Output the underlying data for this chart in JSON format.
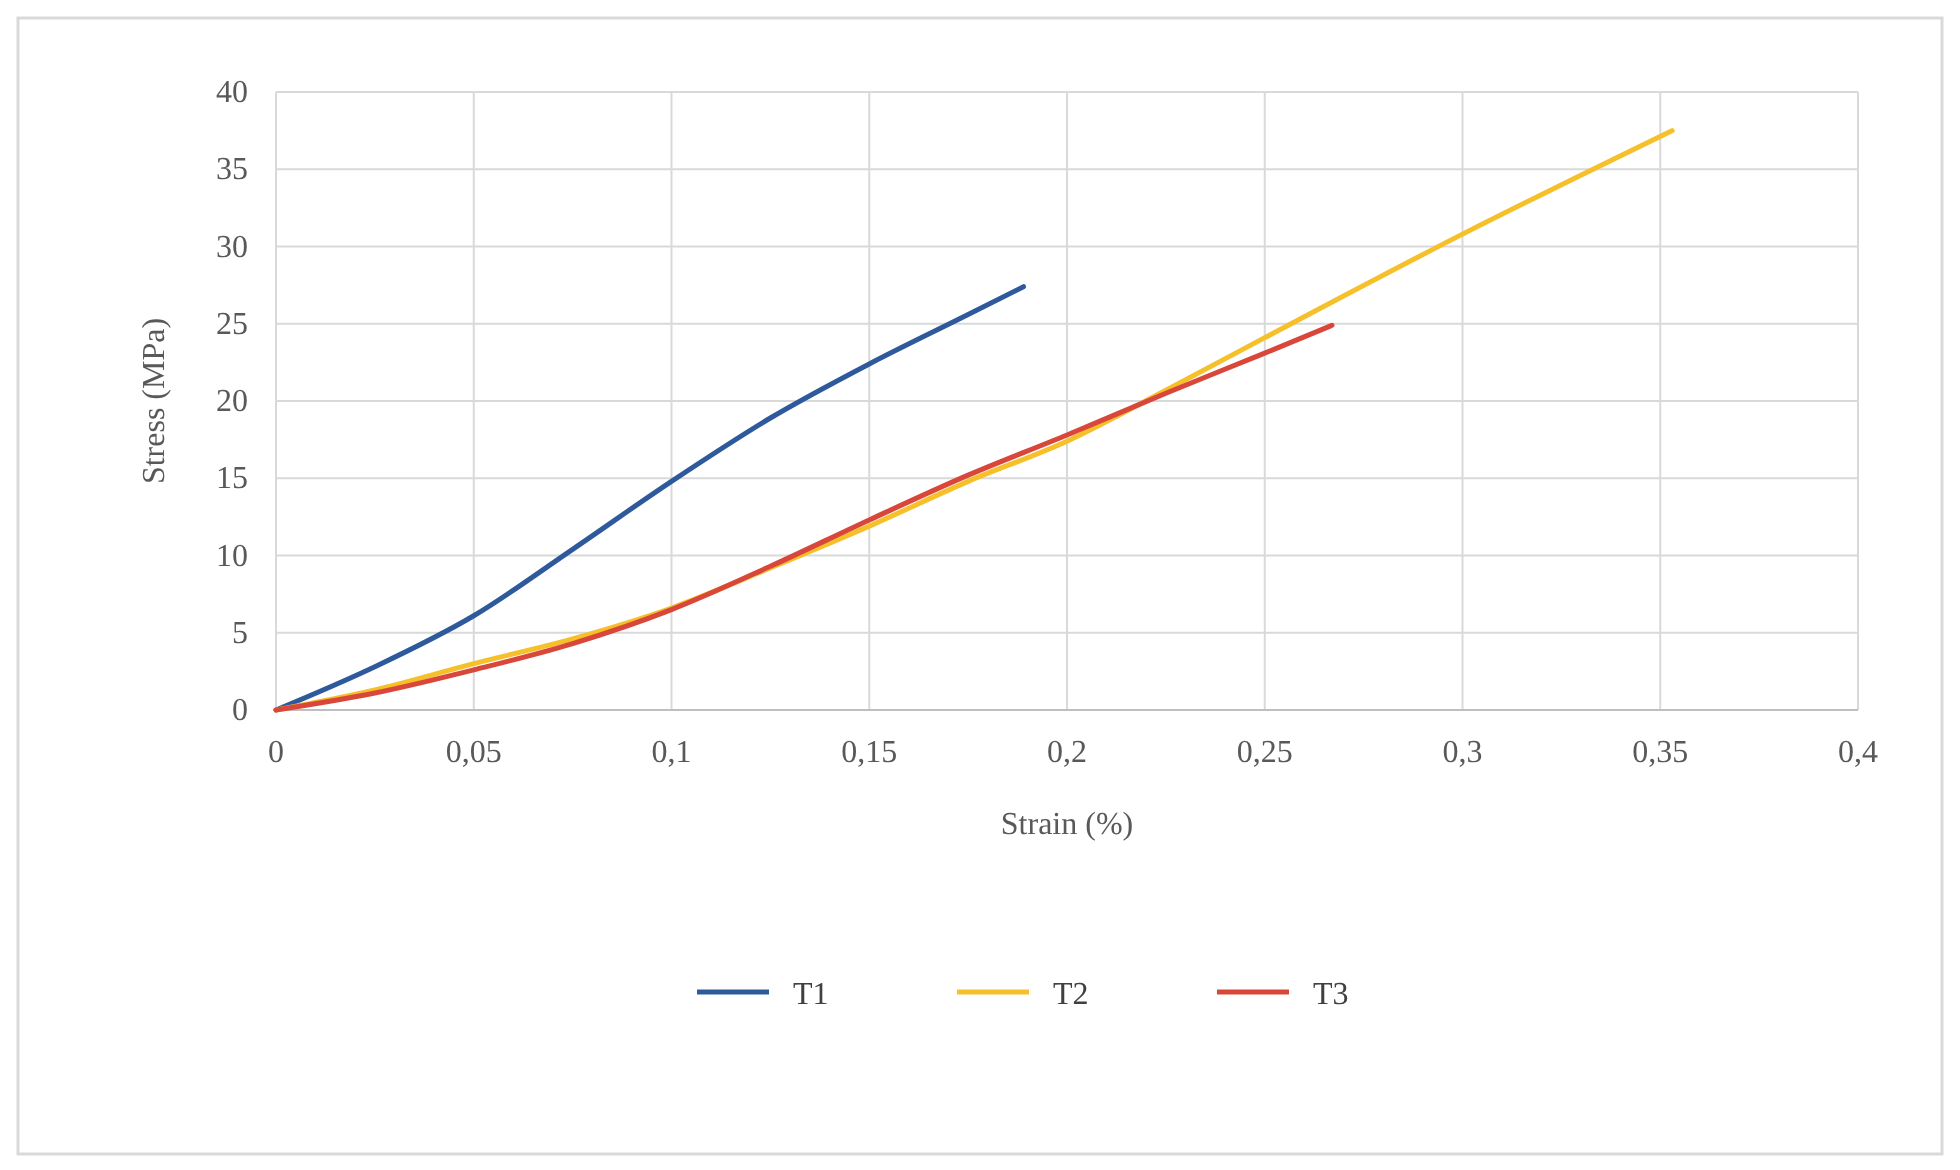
{
  "chart_data": {
    "type": "line",
    "xlabel": "Strain (%)",
    "ylabel": "Stress (MPa)",
    "xlim": [
      0,
      0.4
    ],
    "ylim": [
      0,
      40
    ],
    "xticks": [
      0,
      {
        "value": 0.05,
        "label": "0,05"
      },
      {
        "value": 0.1,
        "label": "0,1"
      },
      {
        "value": 0.15,
        "label": "0,15"
      },
      {
        "value": 0.2,
        "label": "0,2"
      },
      {
        "value": 0.25,
        "label": "0,25"
      },
      {
        "value": 0.3,
        "label": "0,3"
      },
      {
        "value": 0.35,
        "label": "0,35"
      },
      {
        "value": 0.4,
        "label": "0,4"
      }
    ],
    "yticks": [
      0,
      5,
      10,
      15,
      20,
      25,
      30,
      35,
      40
    ],
    "grid": true,
    "legend": "bottom",
    "marker": "none",
    "line_style": "solid",
    "series": [
      {
        "name": "T1",
        "color": "#2e5a9c",
        "x": [
          0,
          0.025,
          0.05,
          0.075,
          0.1,
          0.125,
          0.15,
          0.175,
          0.189
        ],
        "values": [
          0,
          2.8,
          6.1,
          10.4,
          14.8,
          18.9,
          22.4,
          25.6,
          27.4
        ]
      },
      {
        "name": "T2",
        "color": "#f5c02a",
        "x": [
          0,
          0.025,
          0.05,
          0.075,
          0.1,
          0.125,
          0.15,
          0.175,
          0.2,
          0.225,
          0.25,
          0.3,
          0.353
        ],
        "values": [
          0,
          1.3,
          3,
          4.6,
          6.6,
          9.2,
          11.9,
          14.8,
          17.4,
          20.7,
          24.1,
          30.8,
          37.5
        ]
      },
      {
        "name": "T3",
        "color": "#d9473a",
        "x": [
          0,
          0.025,
          0.05,
          0.075,
          0.1,
          0.125,
          0.15,
          0.175,
          0.2,
          0.225,
          0.25,
          0.267
        ],
        "values": [
          0,
          1.1,
          2.6,
          4.3,
          6.5,
          9.3,
          12.3,
          15.2,
          17.8,
          20.5,
          23.1,
          24.9
        ]
      }
    ]
  }
}
